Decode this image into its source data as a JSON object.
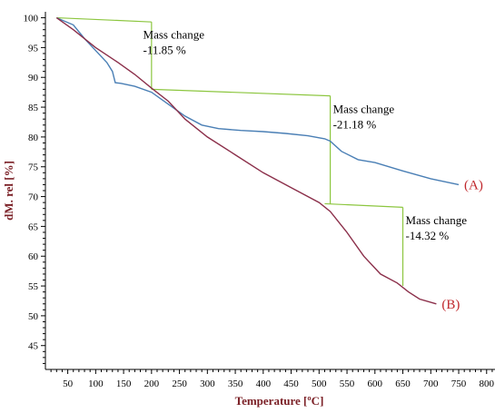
{
  "chart_data": {
    "type": "line",
    "xlabel": "Temperature [ºC]",
    "ylabel": "dM. rel [%]",
    "xlim": [
      10,
      815
    ],
    "ylim": [
      41,
      101
    ],
    "x_ticks": [
      50,
      100,
      150,
      200,
      250,
      300,
      350,
      400,
      450,
      500,
      550,
      600,
      650,
      700,
      750,
      800
    ],
    "y_ticks": [
      45,
      50,
      55,
      60,
      65,
      70,
      75,
      80,
      85,
      90,
      95,
      100
    ],
    "grid": false,
    "series": [
      {
        "name": "(A)",
        "color": "#4a7fb5",
        "points": [
          [
            30,
            100
          ],
          [
            60,
            98.8
          ],
          [
            80,
            96.5
          ],
          [
            100,
            94.5
          ],
          [
            120,
            92.5
          ],
          [
            130,
            91
          ],
          [
            135,
            89.1
          ],
          [
            145,
            89
          ],
          [
            170,
            88.5
          ],
          [
            200,
            87.5
          ],
          [
            230,
            85.5
          ],
          [
            260,
            83.5
          ],
          [
            290,
            82
          ],
          [
            320,
            81.4
          ],
          [
            360,
            81.1
          ],
          [
            400,
            80.9
          ],
          [
            440,
            80.6
          ],
          [
            480,
            80.2
          ],
          [
            510,
            79.7
          ],
          [
            520,
            79.3
          ],
          [
            540,
            77.6
          ],
          [
            570,
            76.2
          ],
          [
            600,
            75.7
          ],
          [
            650,
            74.3
          ],
          [
            700,
            73
          ],
          [
            750,
            72
          ]
        ]
      },
      {
        "name": "(B)",
        "color": "#8b2f4a",
        "points": [
          [
            30,
            100
          ],
          [
            60,
            98
          ],
          [
            100,
            95
          ],
          [
            140,
            92.5
          ],
          [
            170,
            90.5
          ],
          [
            200,
            88.2
          ],
          [
            230,
            86
          ],
          [
            260,
            83
          ],
          [
            300,
            80
          ],
          [
            350,
            77
          ],
          [
            400,
            74
          ],
          [
            450,
            71.5
          ],
          [
            500,
            69
          ],
          [
            520,
            67.5
          ],
          [
            550,
            64
          ],
          [
            580,
            60
          ],
          [
            610,
            57
          ],
          [
            640,
            55.5
          ],
          [
            660,
            54
          ],
          [
            680,
            52.8
          ],
          [
            710,
            52
          ]
        ]
      }
    ],
    "annotations": [
      {
        "line1": "Mass change",
        "line2": "-11.85 %"
      },
      {
        "line1": "Mass change",
        "line2": "-21.18 %"
      },
      {
        "line1": "Mass change",
        "line2": "-14.32 %"
      }
    ],
    "step_lines": [
      {
        "from": [
          30,
          100
        ],
        "to": [
          200,
          99.3
        ],
        "drop_to": 88
      },
      {
        "from": [
          200,
          88
        ],
        "to": [
          520,
          86.9
        ],
        "drop_to": 68.8
      },
      {
        "from": [
          510,
          68.8
        ],
        "to": [
          650,
          68.2
        ],
        "drop_to": 55
      }
    ],
    "step_color": "#8cc63f"
  }
}
